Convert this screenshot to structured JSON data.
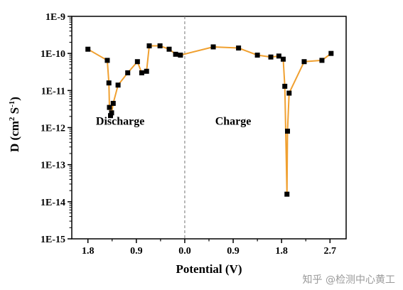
{
  "chart_data": {
    "type": "line",
    "xlabel": "Potential (V)",
    "ylabel_main": "D (cm",
    "ylabel_sup1": "2",
    "ylabel_mid": " S",
    "ylabel_sup2": "-1",
    "ylabel_end": ")",
    "y_scale": "log",
    "ylim": [
      1e-15,
      1e-09
    ],
    "xlim": [
      -2.1,
      3.0
    ],
    "x_tick_values": [
      -1.8,
      -0.9,
      0.0,
      0.9,
      1.8,
      2.7
    ],
    "x_tick_labels": [
      "1.8",
      "0.9",
      "0.0",
      "0.9",
      "1.8",
      "2.7"
    ],
    "y_tick_values": [
      1e-09,
      1e-10,
      1e-11,
      1e-12,
      1e-13,
      1e-14,
      1e-15
    ],
    "y_tick_labels": [
      "1E-9",
      "1E-10",
      "1E-11",
      "1E-12",
      "1E-13",
      "1E-14",
      "1E-15"
    ],
    "grid": false,
    "divider_x": 0.0,
    "line_color": "#f0a030",
    "marker_color": "#000000",
    "annotations": [
      {
        "text": "Discharge",
        "x": -1.2,
        "y": 1.5e-12
      },
      {
        "text": "Charge",
        "x": 0.9,
        "y": 1.5e-12
      }
    ],
    "series": [
      {
        "x": [
          -1.8,
          -1.44,
          -1.41,
          -1.4,
          -1.38,
          -1.36,
          -1.33,
          -1.24,
          -1.06,
          -0.88,
          -0.8,
          -0.71,
          -0.66,
          -0.46,
          -0.29,
          -0.17,
          -0.08,
          0.53,
          1.0,
          1.35,
          1.6,
          1.75,
          1.83,
          1.86,
          1.9,
          1.91,
          1.94,
          2.22,
          2.55,
          2.72
        ],
        "y": [
          1.3e-10,
          6.5e-11,
          1.6e-11,
          3.5e-12,
          2.1e-12,
          2.5e-12,
          4.5e-12,
          1.4e-11,
          3e-11,
          6e-11,
          3e-11,
          3.3e-11,
          1.6e-10,
          1.6e-10,
          1.3e-10,
          9.5e-11,
          9e-11,
          1.5e-10,
          1.4e-10,
          9e-11,
          8e-11,
          8.5e-11,
          7e-11,
          1.3e-11,
          1.6e-14,
          8e-13,
          8.5e-12,
          6e-11,
          6.5e-11,
          1e-10
        ]
      }
    ]
  },
  "watermark": {
    "text": "知乎 @检测中心黄工"
  }
}
